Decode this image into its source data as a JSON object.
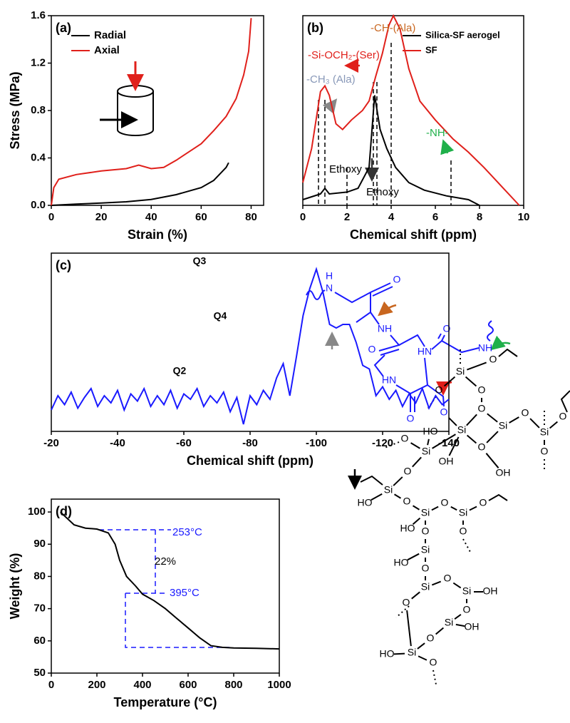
{
  "chart_data": [
    {
      "type": "line",
      "panel_label": "(a)",
      "xlabel": "Strain (%)",
      "ylabel": "Stress (MPa)",
      "xlim": [
        0,
        85
      ],
      "xticks": [
        0,
        20,
        40,
        60,
        80
      ],
      "ylim": [
        0,
        1.6
      ],
      "yticks": [
        {
          "value": 0,
          "label": "0.0"
        },
        0.4,
        0.8,
        1.2,
        1.6
      ],
      "legend": "upper left",
      "series": [
        {
          "name": "Radial",
          "color": "#000000",
          "x": [
            0,
            10,
            20,
            30,
            40,
            50,
            60,
            65,
            70,
            71
          ],
          "values": [
            0,
            0.01,
            0.02,
            0.03,
            0.05,
            0.09,
            0.15,
            0.21,
            0.32,
            0.36
          ]
        },
        {
          "name": "Axial",
          "color": "#e0201b",
          "x": [
            0,
            1,
            3,
            10,
            20,
            30,
            35,
            40,
            45,
            50,
            55,
            60,
            65,
            70,
            74,
            77,
            79,
            80
          ],
          "values": [
            0,
            0.15,
            0.22,
            0.26,
            0.29,
            0.31,
            0.34,
            0.31,
            0.32,
            0.38,
            0.45,
            0.52,
            0.63,
            0.75,
            0.9,
            1.1,
            1.3,
            1.58
          ]
        }
      ]
    },
    {
      "type": "line",
      "panel_label": "(b)",
      "xlabel": "Chemical shift (ppm)",
      "xlim": [
        0,
        10
      ],
      "xticks": [
        0,
        2,
        4,
        6,
        8,
        10
      ],
      "ylim": [
        0,
        1
      ],
      "legend": "upper right",
      "annotations": [
        {
          "text": "-CH-(Ala)",
          "color": "#c8661f"
        },
        {
          "text": "-Si-OCH₂-(Ser)",
          "color": "#e0201b"
        },
        {
          "text": "-CH₃ (Ala)",
          "color": "#8898b8"
        },
        {
          "text": "-NH-",
          "color": "#1fb04a"
        },
        {
          "text": "Ethoxy",
          "color": "#000000"
        },
        {
          "text": "Ethoxy",
          "color": "#000000"
        }
      ],
      "series": [
        {
          "name": "Silica-SF aerogel",
          "color": "#000000",
          "x": [
            0,
            0.8,
            1.0,
            1.2,
            2,
            2.5,
            3.0,
            3.25,
            3.5,
            3.8,
            4.2,
            4.8,
            5.5,
            6.5,
            7.5,
            8
          ],
          "values": [
            0.03,
            0.06,
            0.09,
            0.06,
            0.07,
            0.09,
            0.2,
            0.58,
            0.4,
            0.3,
            0.2,
            0.12,
            0.08,
            0.05,
            0.03,
            0
          ]
        },
        {
          "name": "SF",
          "color": "#e0201b",
          "x": [
            0,
            0.4,
            0.8,
            1.0,
            1.2,
            1.5,
            1.8,
            2.2,
            2.7,
            3.0,
            3.3,
            3.6,
            3.9,
            4.1,
            4.4,
            4.8,
            5.3,
            6,
            6.8,
            7.5,
            8.2,
            9,
            9.8
          ],
          "values": [
            0.12,
            0.3,
            0.6,
            0.63,
            0.58,
            0.43,
            0.4,
            0.45,
            0.5,
            0.55,
            0.68,
            0.8,
            0.95,
            1.0,
            0.93,
            0.72,
            0.55,
            0.45,
            0.35,
            0.28,
            0.2,
            0.1,
            0
          ]
        }
      ]
    },
    {
      "type": "line",
      "panel_label": "(c)",
      "xlabel": "Chemical shift (ppm)",
      "xlim": [
        -20,
        -140
      ],
      "xticks": [
        -20,
        -40,
        -60,
        -80,
        -100,
        -120,
        -140
      ],
      "ylim": [
        0,
        1
      ],
      "annotations": [
        {
          "text": "Q2",
          "color": "#000000"
        },
        {
          "text": "Q3",
          "color": "#000000"
        },
        {
          "text": "Q4",
          "color": "#000000"
        }
      ],
      "series": [
        {
          "color": "#1a1aff",
          "x": [
            -20,
            -22,
            -24,
            -26,
            -28,
            -30,
            -32,
            -34,
            -36,
            -38,
            -40,
            -42,
            -44,
            -46,
            -48,
            -50,
            -52,
            -54,
            -56,
            -58,
            -60,
            -62,
            -64,
            -66,
            -68,
            -70,
            -72,
            -74,
            -76,
            -78,
            -80,
            -82,
            -84,
            -86,
            -88,
            -90,
            -92,
            -94,
            -96,
            -98,
            -100,
            -102,
            -104,
            -106,
            -108,
            -110,
            -112,
            -114,
            -116,
            -118,
            -120,
            -122,
            -124,
            -126,
            -128,
            -130,
            -132,
            -134,
            -136,
            -138,
            -140
          ],
          "values": [
            0.12,
            0.2,
            0.15,
            0.22,
            0.13,
            0.19,
            0.24,
            0.14,
            0.2,
            0.16,
            0.23,
            0.12,
            0.21,
            0.17,
            0.24,
            0.14,
            0.2,
            0.15,
            0.23,
            0.13,
            0.21,
            0.18,
            0.24,
            0.14,
            0.2,
            0.16,
            0.22,
            0.11,
            0.19,
            0.04,
            0.2,
            0.15,
            0.23,
            0.18,
            0.3,
            0.38,
            0.2,
            0.42,
            0.65,
            0.8,
            0.91,
            0.78,
            0.6,
            0.58,
            0.6,
            0.6,
            0.5,
            0.37,
            0.35,
            0.2,
            0.25,
            0.18,
            0.23,
            0.14,
            0.21,
            0.16,
            0.24,
            0.13,
            0.2,
            0.15,
            0.18
          ]
        }
      ]
    },
    {
      "type": "line",
      "panel_label": "(d)",
      "xlabel": "Temperature (°C)",
      "ylabel": "Weight (%)",
      "xlim": [
        0,
        1000
      ],
      "xticks": [
        0,
        200,
        400,
        600,
        800,
        1000
      ],
      "ylim": [
        50,
        104
      ],
      "yticks": [
        50,
        60,
        70,
        80,
        90,
        100
      ],
      "annotations": [
        {
          "text": "253°C",
          "color": "#1a1aff"
        },
        {
          "text": "395°C",
          "color": "#1a1aff"
        },
        {
          "text": "22%",
          "color": "#000000"
        }
      ],
      "series": [
        {
          "color": "#000000",
          "x": [
            40,
            100,
            150,
            200,
            250,
            280,
            300,
            330,
            370,
            400,
            450,
            500,
            550,
            600,
            650,
            700,
            750,
            800,
            900,
            1000
          ],
          "values": [
            100,
            96,
            95,
            94.7,
            93.5,
            90,
            85,
            80,
            77,
            74.5,
            72.5,
            70,
            67,
            64,
            61,
            58.5,
            58,
            57.8,
            57.7,
            57.5
          ]
        }
      ]
    }
  ],
  "structure": {
    "labels": [
      "H",
      "N",
      "O",
      "NH",
      "O",
      "HN",
      "NH",
      "O",
      "HN",
      "O",
      "O",
      "Si",
      "O",
      "O",
      "O",
      "Si",
      "O",
      "O",
      "Si",
      "O",
      "O",
      "HO",
      "Si",
      "O",
      "Si",
      "O",
      "OH",
      "OH",
      "O",
      "Si",
      "O",
      "Si",
      "O",
      "Si",
      "O",
      "HO",
      "HO",
      "O",
      "O",
      "Si",
      "HO",
      "O",
      "Si",
      "O",
      "Si",
      "OH",
      "O",
      "O",
      "Si",
      "OH",
      "O",
      "Si",
      "HO",
      "O"
    ]
  }
}
